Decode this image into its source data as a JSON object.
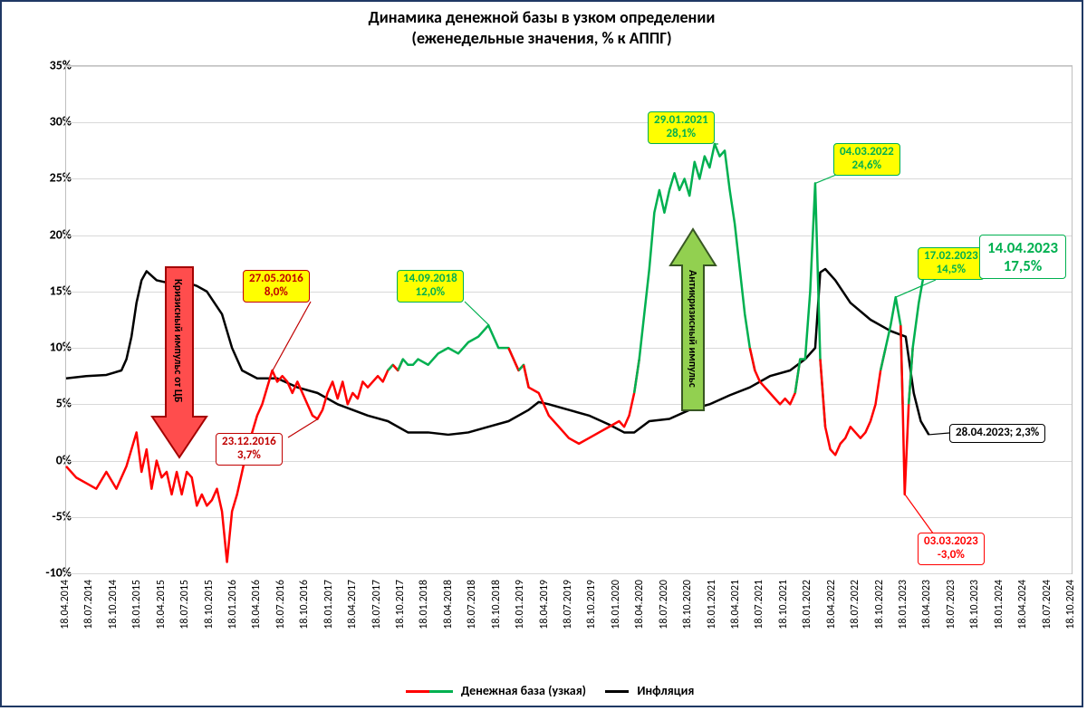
{
  "title_line1": "Динамика денежной базы в узком определении",
  "title_line2": "(еженедельные значения, % к АППГ)",
  "legend": {
    "series1": "Денежная база (узкая)",
    "series2": "Инфляция"
  },
  "colors": {
    "border": "#1f3864",
    "grid": "#d9d9d9",
    "axis": "#bfbfbf",
    "money_red": "#ff0000",
    "money_green": "#00b050",
    "inflation": "#000000",
    "callout_yellow": "#ffff00",
    "arrow_red_fill": "#ff0000",
    "arrow_red_stroke": "#a40000",
    "arrow_green_fill": "#92d050",
    "arrow_green_stroke": "#385723"
  },
  "y_axis": {
    "min": -10,
    "max": 35,
    "step": 5
  },
  "x_axis": {
    "start": "18.04.2014",
    "end": "18.10.2024",
    "labels": [
      "18.04.2014",
      "18.07.2014",
      "18.10.2014",
      "18.01.2015",
      "18.04.2015",
      "18.07.2015",
      "18.10.2015",
      "18.01.2016",
      "18.04.2016",
      "18.07.2016",
      "18.10.2016",
      "18.01.2017",
      "18.04.2017",
      "18.07.2017",
      "18.10.2017",
      "18.01.2018",
      "18.04.2018",
      "18.07.2018",
      "18.10.2018",
      "18.01.2019",
      "18.04.2019",
      "18.07.2019",
      "18.10.2019",
      "18.01.2020",
      "18.04.2020",
      "18.07.2020",
      "18.10.2020",
      "18.01.2021",
      "18.04.2021",
      "18.07.2021",
      "18.10.2021",
      "18.01.2022",
      "18.04.2022",
      "18.07.2022",
      "18.10.2022",
      "18.01.2023",
      "18.04.2023",
      "18.07.2023",
      "18.10.2023",
      "18.01.2024",
      "18.04.2024",
      "18.07.2024",
      "18.10.2024"
    ]
  },
  "callouts": {
    "c1": {
      "date": "27.05.2016",
      "value": "8,0%",
      "border": "#c00000",
      "text": "#c00000"
    },
    "c2": {
      "date": "23.12.2016",
      "value": "3,7%",
      "border": "#c00000",
      "text": "#c00000"
    },
    "c3": {
      "date": "14.09.2018",
      "value": "12,0%",
      "border": "#00b050",
      "text": "#00b050"
    },
    "c4": {
      "date": "29.01.2021",
      "value": "28,1%",
      "border": "#00b050",
      "text": "#00b050"
    },
    "c5": {
      "date": "04.03.2022",
      "value": "24,6%",
      "border": "#00b050",
      "text": "#00b050"
    },
    "c6": {
      "date": "17.02.2023",
      "value": "14,5%",
      "border": "#00b050",
      "text": "#00b050"
    },
    "c7": {
      "date": "14.04.2023",
      "value": "17,5%",
      "border": "#00b050",
      "text": "#00b050"
    },
    "c8": {
      "date": "03.03.2023",
      "value": "-3,0%",
      "border": "#ff0000",
      "text": "#ff0000"
    },
    "c9": {
      "date": "28.04.2023; 2,3%",
      "value": "",
      "border": "#000000",
      "text": "#000000"
    }
  },
  "arrows": {
    "down": {
      "label": "Кризисный импульс от ЦБ"
    },
    "up": {
      "label": "Антикризисный импульс"
    }
  },
  "series": {
    "money_base": [
      {
        "t": 0.0,
        "v": -0.5
      },
      {
        "t": 0.01,
        "v": -1.5
      },
      {
        "t": 0.02,
        "v": -2.0
      },
      {
        "t": 0.03,
        "v": -2.5
      },
      {
        "t": 0.04,
        "v": -1.0
      },
      {
        "t": 0.05,
        "v": -2.5
      },
      {
        "t": 0.06,
        "v": -0.5
      },
      {
        "t": 0.07,
        "v": 2.5
      },
      {
        "t": 0.075,
        "v": -1.0
      },
      {
        "t": 0.08,
        "v": 1.0
      },
      {
        "t": 0.085,
        "v": -2.5
      },
      {
        "t": 0.09,
        "v": 0.0
      },
      {
        "t": 0.095,
        "v": -1.5
      },
      {
        "t": 0.1,
        "v": -1.0
      },
      {
        "t": 0.105,
        "v": -3.0
      },
      {
        "t": 0.11,
        "v": -1.0
      },
      {
        "t": 0.115,
        "v": -3.0
      },
      {
        "t": 0.12,
        "v": -1.0
      },
      {
        "t": 0.125,
        "v": -1.5
      },
      {
        "t": 0.13,
        "v": -4.0
      },
      {
        "t": 0.135,
        "v": -3.0
      },
      {
        "t": 0.14,
        "v": -4.0
      },
      {
        "t": 0.145,
        "v": -3.5
      },
      {
        "t": 0.15,
        "v": -2.5
      },
      {
        "t": 0.155,
        "v": -4.5
      },
      {
        "t": 0.16,
        "v": -9.0
      },
      {
        "t": 0.165,
        "v": -4.5
      },
      {
        "t": 0.17,
        "v": -3.0
      },
      {
        "t": 0.175,
        "v": -1.0
      },
      {
        "t": 0.18,
        "v": 1.0
      },
      {
        "t": 0.185,
        "v": 2.5
      },
      {
        "t": 0.19,
        "v": 4.0
      },
      {
        "t": 0.195,
        "v": 5.0
      },
      {
        "t": 0.2,
        "v": 6.5
      },
      {
        "t": 0.205,
        "v": 8.0
      },
      {
        "t": 0.21,
        "v": 7.0
      },
      {
        "t": 0.215,
        "v": 7.5
      },
      {
        "t": 0.22,
        "v": 7.0
      },
      {
        "t": 0.225,
        "v": 6.0
      },
      {
        "t": 0.23,
        "v": 7.0
      },
      {
        "t": 0.235,
        "v": 6.0
      },
      {
        "t": 0.24,
        "v": 5.0
      },
      {
        "t": 0.245,
        "v": 4.0
      },
      {
        "t": 0.25,
        "v": 3.7
      },
      {
        "t": 0.255,
        "v": 4.5
      },
      {
        "t": 0.26,
        "v": 6.0
      },
      {
        "t": 0.265,
        "v": 7.0
      },
      {
        "t": 0.27,
        "v": 5.5
      },
      {
        "t": 0.275,
        "v": 7.0
      },
      {
        "t": 0.28,
        "v": 5.0
      },
      {
        "t": 0.285,
        "v": 6.0
      },
      {
        "t": 0.29,
        "v": 5.5
      },
      {
        "t": 0.295,
        "v": 7.0
      },
      {
        "t": 0.3,
        "v": 6.5
      },
      {
        "t": 0.305,
        "v": 7.0
      },
      {
        "t": 0.31,
        "v": 7.5
      },
      {
        "t": 0.315,
        "v": 7.0
      },
      {
        "t": 0.32,
        "v": 8.0
      },
      {
        "t": 0.325,
        "v": 8.5
      },
      {
        "t": 0.33,
        "v": 8.0
      },
      {
        "t": 0.335,
        "v": 9.0
      },
      {
        "t": 0.34,
        "v": 8.5
      },
      {
        "t": 0.345,
        "v": 8.5
      },
      {
        "t": 0.35,
        "v": 9.0
      },
      {
        "t": 0.36,
        "v": 8.5
      },
      {
        "t": 0.37,
        "v": 9.5
      },
      {
        "t": 0.38,
        "v": 10.0
      },
      {
        "t": 0.39,
        "v": 9.5
      },
      {
        "t": 0.4,
        "v": 10.5
      },
      {
        "t": 0.41,
        "v": 11.0
      },
      {
        "t": 0.42,
        "v": 12.0
      },
      {
        "t": 0.425,
        "v": 11.0
      },
      {
        "t": 0.43,
        "v": 10.0
      },
      {
        "t": 0.44,
        "v": 10.0
      },
      {
        "t": 0.45,
        "v": 8.0
      },
      {
        "t": 0.455,
        "v": 8.5
      },
      {
        "t": 0.46,
        "v": 6.5
      },
      {
        "t": 0.47,
        "v": 6.0
      },
      {
        "t": 0.48,
        "v": 4.0
      },
      {
        "t": 0.49,
        "v": 3.0
      },
      {
        "t": 0.5,
        "v": 2.0
      },
      {
        "t": 0.51,
        "v": 1.5
      },
      {
        "t": 0.52,
        "v": 2.0
      },
      {
        "t": 0.53,
        "v": 2.5
      },
      {
        "t": 0.54,
        "v": 3.0
      },
      {
        "t": 0.55,
        "v": 3.5
      },
      {
        "t": 0.555,
        "v": 3.0
      },
      {
        "t": 0.56,
        "v": 4.0
      },
      {
        "t": 0.565,
        "v": 6.0
      },
      {
        "t": 0.57,
        "v": 9.0
      },
      {
        "t": 0.575,
        "v": 13.0
      },
      {
        "t": 0.58,
        "v": 17.0
      },
      {
        "t": 0.585,
        "v": 22.0
      },
      {
        "t": 0.59,
        "v": 24.0
      },
      {
        "t": 0.595,
        "v": 22.0
      },
      {
        "t": 0.6,
        "v": 24.0
      },
      {
        "t": 0.605,
        "v": 25.5
      },
      {
        "t": 0.61,
        "v": 24.0
      },
      {
        "t": 0.615,
        "v": 25.0
      },
      {
        "t": 0.62,
        "v": 23.5
      },
      {
        "t": 0.625,
        "v": 26.5
      },
      {
        "t": 0.63,
        "v": 25.0
      },
      {
        "t": 0.635,
        "v": 27.0
      },
      {
        "t": 0.64,
        "v": 26.0
      },
      {
        "t": 0.645,
        "v": 28.1
      },
      {
        "t": 0.65,
        "v": 27.0
      },
      {
        "t": 0.655,
        "v": 27.5
      },
      {
        "t": 0.66,
        "v": 24.0
      },
      {
        "t": 0.665,
        "v": 21.0
      },
      {
        "t": 0.67,
        "v": 17.0
      },
      {
        "t": 0.675,
        "v": 13.0
      },
      {
        "t": 0.68,
        "v": 10.0
      },
      {
        "t": 0.685,
        "v": 8.0
      },
      {
        "t": 0.69,
        "v": 7.0
      },
      {
        "t": 0.695,
        "v": 6.5
      },
      {
        "t": 0.7,
        "v": 6.0
      },
      {
        "t": 0.705,
        "v": 5.5
      },
      {
        "t": 0.71,
        "v": 5.0
      },
      {
        "t": 0.715,
        "v": 5.5
      },
      {
        "t": 0.72,
        "v": 5.0
      },
      {
        "t": 0.725,
        "v": 6.0
      },
      {
        "t": 0.73,
        "v": 9.0
      },
      {
        "t": 0.735,
        "v": 9.0
      },
      {
        "t": 0.74,
        "v": 15.0
      },
      {
        "t": 0.745,
        "v": 24.6
      },
      {
        "t": 0.75,
        "v": 9.0
      },
      {
        "t": 0.755,
        "v": 3.0
      },
      {
        "t": 0.76,
        "v": 1.0
      },
      {
        "t": 0.765,
        "v": 0.5
      },
      {
        "t": 0.77,
        "v": 1.5
      },
      {
        "t": 0.775,
        "v": 2.0
      },
      {
        "t": 0.78,
        "v": 3.0
      },
      {
        "t": 0.785,
        "v": 2.5
      },
      {
        "t": 0.79,
        "v": 2.0
      },
      {
        "t": 0.795,
        "v": 2.5
      },
      {
        "t": 0.8,
        "v": 3.5
      },
      {
        "t": 0.805,
        "v": 5.0
      },
      {
        "t": 0.81,
        "v": 8.0
      },
      {
        "t": 0.815,
        "v": 10.0
      },
      {
        "t": 0.82,
        "v": 12.0
      },
      {
        "t": 0.825,
        "v": 14.5
      },
      {
        "t": 0.83,
        "v": 12.0
      },
      {
        "t": 0.832,
        "v": 5.0
      },
      {
        "t": 0.834,
        "v": -3.0
      },
      {
        "t": 0.838,
        "v": 5.0
      },
      {
        "t": 0.842,
        "v": 10.0
      },
      {
        "t": 0.848,
        "v": 14.0
      },
      {
        "t": 0.855,
        "v": 17.5
      }
    ],
    "inflation": [
      {
        "t": 0.0,
        "v": 7.3
      },
      {
        "t": 0.02,
        "v": 7.5
      },
      {
        "t": 0.04,
        "v": 7.6
      },
      {
        "t": 0.055,
        "v": 8.0
      },
      {
        "t": 0.06,
        "v": 9.0
      },
      {
        "t": 0.065,
        "v": 11.0
      },
      {
        "t": 0.07,
        "v": 14.0
      },
      {
        "t": 0.075,
        "v": 16.0
      },
      {
        "t": 0.08,
        "v": 16.8
      },
      {
        "t": 0.09,
        "v": 16.0
      },
      {
        "t": 0.1,
        "v": 15.8
      },
      {
        "t": 0.11,
        "v": 15.5
      },
      {
        "t": 0.12,
        "v": 15.8
      },
      {
        "t": 0.13,
        "v": 15.5
      },
      {
        "t": 0.14,
        "v": 15.0
      },
      {
        "t": 0.155,
        "v": 13.0
      },
      {
        "t": 0.165,
        "v": 10.0
      },
      {
        "t": 0.175,
        "v": 8.0
      },
      {
        "t": 0.19,
        "v": 7.3
      },
      {
        "t": 0.21,
        "v": 7.3
      },
      {
        "t": 0.23,
        "v": 6.5
      },
      {
        "t": 0.25,
        "v": 6.0
      },
      {
        "t": 0.27,
        "v": 5.0
      },
      {
        "t": 0.285,
        "v": 4.5
      },
      {
        "t": 0.3,
        "v": 4.0
      },
      {
        "t": 0.32,
        "v": 3.5
      },
      {
        "t": 0.34,
        "v": 2.5
      },
      {
        "t": 0.36,
        "v": 2.5
      },
      {
        "t": 0.38,
        "v": 2.3
      },
      {
        "t": 0.4,
        "v": 2.5
      },
      {
        "t": 0.42,
        "v": 3.0
      },
      {
        "t": 0.44,
        "v": 3.5
      },
      {
        "t": 0.46,
        "v": 4.5
      },
      {
        "t": 0.47,
        "v": 5.2
      },
      {
        "t": 0.48,
        "v": 5.0
      },
      {
        "t": 0.5,
        "v": 4.5
      },
      {
        "t": 0.52,
        "v": 4.0
      },
      {
        "t": 0.54,
        "v": 3.2
      },
      {
        "t": 0.555,
        "v": 2.5
      },
      {
        "t": 0.565,
        "v": 2.5
      },
      {
        "t": 0.58,
        "v": 3.5
      },
      {
        "t": 0.6,
        "v": 3.7
      },
      {
        "t": 0.62,
        "v": 4.5
      },
      {
        "t": 0.64,
        "v": 5.0
      },
      {
        "t": 0.66,
        "v": 5.8
      },
      {
        "t": 0.68,
        "v": 6.5
      },
      {
        "t": 0.7,
        "v": 7.5
      },
      {
        "t": 0.72,
        "v": 8.0
      },
      {
        "t": 0.735,
        "v": 9.0
      },
      {
        "t": 0.745,
        "v": 10.0
      },
      {
        "t": 0.75,
        "v": 16.7
      },
      {
        "t": 0.755,
        "v": 17.0
      },
      {
        "t": 0.765,
        "v": 16.0
      },
      {
        "t": 0.78,
        "v": 14.0
      },
      {
        "t": 0.8,
        "v": 12.5
      },
      {
        "t": 0.82,
        "v": 11.5
      },
      {
        "t": 0.835,
        "v": 11.0
      },
      {
        "t": 0.843,
        "v": 6.0
      },
      {
        "t": 0.85,
        "v": 3.5
      },
      {
        "t": 0.858,
        "v": 2.3
      }
    ]
  }
}
